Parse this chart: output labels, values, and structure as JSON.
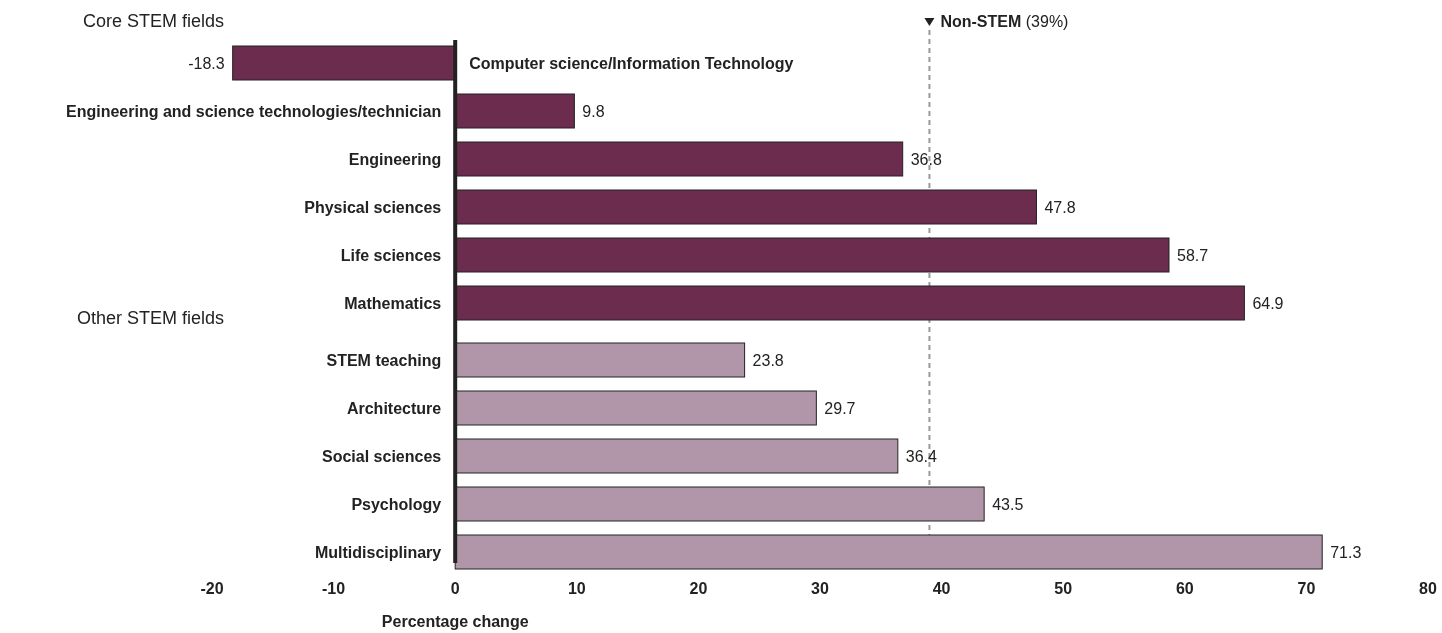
{
  "chart_data": {
    "type": "bar",
    "orientation": "horizontal",
    "xlabel": "Percentage change",
    "categories": [
      "Computer science/Information Technology",
      "Engineering and science technologies/technician",
      "Engineering",
      "Physical sciences",
      "Life sciences",
      "Mathematics",
      "STEM teaching",
      "Architecture",
      "Social sciences",
      "Psychology",
      "Multidisciplinary"
    ],
    "values": [
      -18.3,
      9.8,
      36.8,
      47.8,
      58.7,
      64.9,
      23.8,
      29.7,
      36.4,
      43.5,
      71.3
    ],
    "colors": [
      "#6b2c4e",
      "#6b2c4e",
      "#6b2c4e",
      "#6b2c4e",
      "#6b2c4e",
      "#6b2c4e",
      "#b096a8",
      "#b096a8",
      "#b096a8",
      "#b096a8",
      "#b096a8"
    ],
    "xlim": [
      -20,
      80
    ],
    "xticks": [
      -20,
      -10,
      0,
      10,
      20,
      30,
      40,
      50,
      60,
      70,
      80
    ],
    "ref_lines": [
      {
        "axis": "x",
        "value": 39,
        "label": "Non-STEM (39%)",
        "color": "#999999",
        "line_style": "dashed"
      }
    ],
    "annotations": [
      "Core STEM fields",
      "Other STEM fields"
    ],
    "data_labels": true,
    "grid": false
  }
}
